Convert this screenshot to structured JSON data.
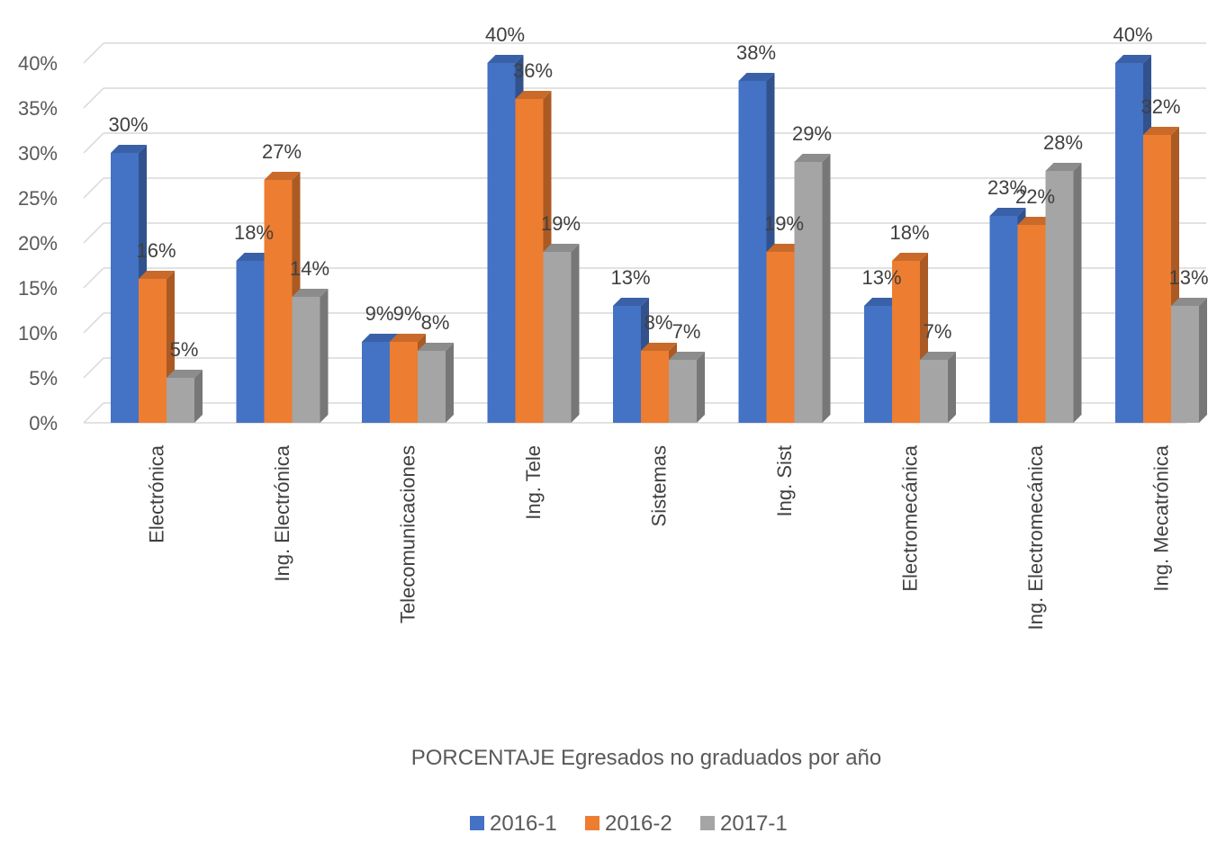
{
  "chart_data": {
    "type": "bar",
    "title": "",
    "xlabel": "PORCENTAJE Egresados no graduados por año",
    "ylabel": "",
    "ylim": [
      0,
      40
    ],
    "yticks": [
      "0%",
      "5%",
      "10%",
      "15%",
      "20%",
      "25%",
      "30%",
      "35%",
      "40%"
    ],
    "grid": true,
    "legend_position": "bottom",
    "categories": [
      "Electrónica",
      "Ing. Electrónica",
      "Telecomunicaciones",
      "Ing. Tele",
      "Sistemas",
      "Ing. Sist",
      "Electromecánica",
      "Ing. Electromecánica",
      "Ing. Mecatrónica"
    ],
    "series": [
      {
        "name": "2016-1",
        "color": "#4472C4",
        "values": [
          30,
          18,
          9,
          40,
          13,
          38,
          13,
          23,
          40
        ],
        "labels": [
          "30%",
          "18%",
          "9%",
          "40%",
          "13%",
          "38%",
          "13%",
          "23%",
          "40%"
        ]
      },
      {
        "name": "2016-2",
        "color": "#ED7D31",
        "values": [
          16,
          27,
          9,
          36,
          8,
          19,
          18,
          22,
          32
        ],
        "labels": [
          "16%",
          "27%",
          "9%",
          "36%",
          "8%",
          "19%",
          "18%",
          "22%",
          "32%"
        ]
      },
      {
        "name": "2017-1",
        "color": "#A5A5A5",
        "values": [
          5,
          14,
          8,
          19,
          7,
          29,
          7,
          28,
          13
        ],
        "labels": [
          "5%",
          "14%",
          "8%",
          "19%",
          "7%",
          "29%",
          "7%",
          "28%",
          "13%"
        ]
      }
    ]
  }
}
